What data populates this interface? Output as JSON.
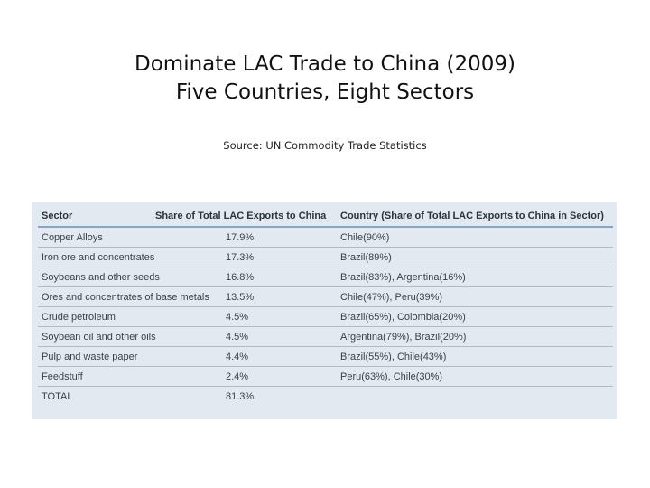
{
  "slide": {
    "title_line1": "Dominate LAC Trade to China (2009)",
    "title_line2": "Five Countries, Eight Sectors",
    "source": "Source: UN Commodity Trade Statistics"
  },
  "table": {
    "headers": {
      "sector": "Sector",
      "share": "Share of Total LAC Exports to China",
      "country": "Country (Share of Total LAC Exports to China in Sector)"
    },
    "rows": [
      {
        "sector": "Copper Alloys",
        "share": "17.9%",
        "country": "Chile(90%)"
      },
      {
        "sector": "Iron ore and concentrates",
        "share": "17.3%",
        "country": "Brazil(89%)"
      },
      {
        "sector": "Soybeans and other seeds",
        "share": "16.8%",
        "country": "Brazil(83%), Argentina(16%)"
      },
      {
        "sector": "Ores and concentrates of base metals",
        "share": "13.5%",
        "country": "Chile(47%), Peru(39%)"
      },
      {
        "sector": "Crude petroleum",
        "share": "4.5%",
        "country": "Brazil(65%), Colombia(20%)"
      },
      {
        "sector": "Soybean oil and other oils",
        "share": "4.5%",
        "country": "Argentina(79%), Brazil(20%)"
      },
      {
        "sector": "Pulp and waste paper",
        "share": "4.4%",
        "country": "Brazil(55%), Chile(43%)"
      },
      {
        "sector": "Feedstuff",
        "share": "2.4%",
        "country": "Peru(63%), Chile(30%)"
      }
    ],
    "total": {
      "label": "TOTAL",
      "share": "81.3%",
      "country": ""
    }
  },
  "colors": {
    "panel_background": "#e3e9f1",
    "row_divider": "#a9bcd8"
  }
}
